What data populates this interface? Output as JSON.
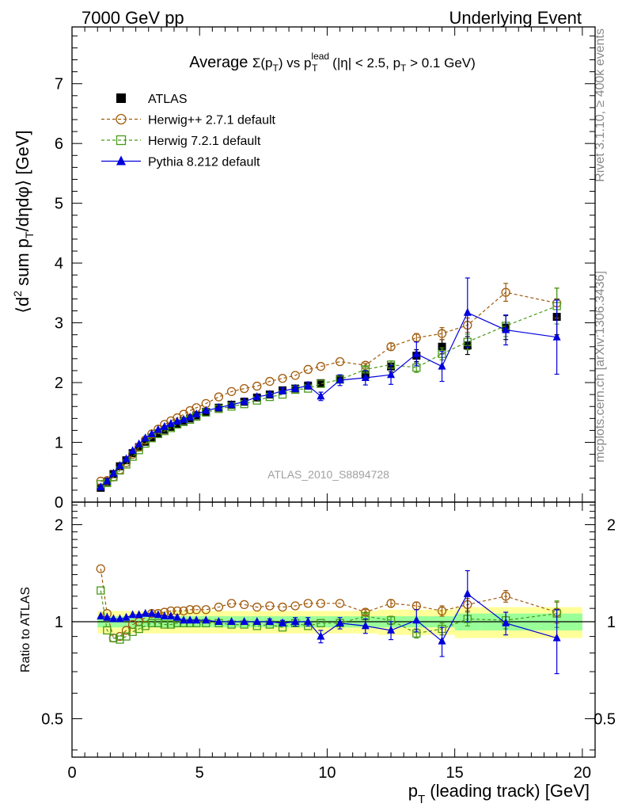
{
  "header": {
    "left": "7000 GeV pp",
    "right": "Underlying Event"
  },
  "side_labels": {
    "rivet": "Rivet 3.1.10, ≥ 400k events",
    "mcplots": "mcplots.cern.ch [arXiv:1306.3436]"
  },
  "plot_title": {
    "prefix": "Average ",
    "sigma": "Σ(p",
    "sigma_sub": "T",
    "sigma_close": ")",
    "vs": " vs p",
    "vs_sup": "lead",
    "vs_sub": "T",
    "cut_open": " (|η| < 2.5, p",
    "cut_sub": "T",
    "cut_close": " > 0.1 GeV)"
  },
  "watermark": "ATLAS_2010_S8894728",
  "legend": [
    {
      "label": "ATLAS",
      "color": "#000000",
      "marker": "filled-square"
    },
    {
      "label": "Herwig++ 2.7.1 default",
      "color": "#a05a0a",
      "marker": "open-circle"
    },
    {
      "label": "Herwig 7.2.1 default",
      "color": "#4a9a1a",
      "marker": "open-square"
    },
    {
      "label": "Pythia 8.212 default",
      "color": "#0000dd",
      "marker": "filled-triangle"
    }
  ],
  "main_ylabel": {
    "part1": "⟨d",
    "sup": "2",
    "part2": " sum p",
    "sub": "T",
    "part3": "/dηdφ⟩ [GeV]"
  },
  "ratio_ylabel": "Ratio to ATLAS",
  "xlabel": {
    "main": "p",
    "sub": "T",
    "rest": " (leading track) [GeV]"
  },
  "chart_data": {
    "type": "scatter",
    "xlim": [
      0,
      20.5
    ],
    "x_ticks": [
      "0",
      "5",
      "10",
      "15",
      "20"
    ],
    "main": {
      "ylim": [
        0,
        7.95
      ],
      "y_ticks": [
        "0",
        "1",
        "2",
        "3",
        "4",
        "5",
        "6",
        "7"
      ],
      "series": [
        {
          "name": "ATLAS",
          "color": "#000000",
          "marker": "filled-square",
          "line": "none",
          "x": [
            1.125,
            1.375,
            1.625,
            1.875,
            2.125,
            2.375,
            2.625,
            2.875,
            3.125,
            3.375,
            3.625,
            3.875,
            4.125,
            4.375,
            4.625,
            4.875,
            5.25,
            5.75,
            6.25,
            6.75,
            7.25,
            7.75,
            8.25,
            8.75,
            9.25,
            9.75,
            10.5,
            11.5,
            12.5,
            13.5,
            14.5,
            15.5,
            17,
            19
          ],
          "y": [
            0.24,
            0.34,
            0.47,
            0.6,
            0.7,
            0.82,
            0.92,
            1.01,
            1.08,
            1.15,
            1.21,
            1.26,
            1.31,
            1.36,
            1.4,
            1.45,
            1.51,
            1.58,
            1.63,
            1.68,
            1.75,
            1.8,
            1.87,
            1.9,
            1.95,
            1.99,
            2.06,
            2.13,
            2.27,
            2.45,
            2.6,
            2.62,
            2.92,
            3.1
          ],
          "err": [
            0.01,
            0.01,
            0.01,
            0.01,
            0.01,
            0.01,
            0.01,
            0.01,
            0.02,
            0.02,
            0.02,
            0.02,
            0.02,
            0.02,
            0.02,
            0.02,
            0.02,
            0.03,
            0.03,
            0.03,
            0.03,
            0.04,
            0.04,
            0.04,
            0.05,
            0.05,
            0.05,
            0.07,
            0.09,
            0.1,
            0.12,
            0.15,
            0.2,
            0.3
          ]
        },
        {
          "name": "Herwig++ 2.7.1 default",
          "color": "#a05a0a",
          "marker": "open-circle",
          "line": "dashed",
          "x": [
            1.125,
            1.375,
            1.625,
            1.875,
            2.125,
            2.375,
            2.625,
            2.875,
            3.125,
            3.375,
            3.625,
            3.875,
            4.125,
            4.375,
            4.625,
            4.875,
            5.25,
            5.75,
            6.25,
            6.75,
            7.25,
            7.75,
            8.25,
            8.75,
            9.25,
            9.75,
            10.5,
            11.5,
            12.5,
            13.5,
            14.5,
            15.5,
            17,
            19
          ],
          "y": [
            0.35,
            0.36,
            0.42,
            0.54,
            0.66,
            0.8,
            0.92,
            1.04,
            1.14,
            1.22,
            1.3,
            1.36,
            1.41,
            1.47,
            1.53,
            1.58,
            1.65,
            1.76,
            1.85,
            1.9,
            1.94,
            2.02,
            2.07,
            2.12,
            2.22,
            2.27,
            2.35,
            2.29,
            2.6,
            2.75,
            2.82,
            2.96,
            3.51,
            3.33
          ],
          "err": [
            0,
            0,
            0,
            0,
            0,
            0,
            0,
            0,
            0,
            0,
            0,
            0,
            0,
            0,
            0,
            0,
            0,
            0,
            0,
            0,
            0,
            0,
            0,
            0,
            0,
            0,
            0,
            0.03,
            0.06,
            0.07,
            0.1,
            0.12,
            0.15,
            0.25
          ]
        },
        {
          "name": "Herwig 7.2.1 default",
          "color": "#4a9a1a",
          "marker": "open-square",
          "line": "dashed",
          "x": [
            1.125,
            1.375,
            1.625,
            1.875,
            2.125,
            2.375,
            2.625,
            2.875,
            3.125,
            3.375,
            3.625,
            3.875,
            4.125,
            4.375,
            4.625,
            4.875,
            5.25,
            5.75,
            6.25,
            6.75,
            7.25,
            7.75,
            8.25,
            8.75,
            9.25,
            9.75,
            10.5,
            11.5,
            12.5,
            13.5,
            14.5,
            15.5,
            17,
            19
          ],
          "y": [
            0.3,
            0.32,
            0.42,
            0.53,
            0.63,
            0.76,
            0.87,
            0.98,
            1.07,
            1.14,
            1.19,
            1.24,
            1.3,
            1.34,
            1.38,
            1.43,
            1.5,
            1.56,
            1.6,
            1.64,
            1.7,
            1.76,
            1.8,
            1.88,
            1.9,
            1.98,
            2.05,
            2.22,
            2.3,
            2.25,
            2.48,
            2.68,
            2.95,
            3.28
          ],
          "err": [
            0,
            0,
            0,
            0,
            0,
            0,
            0,
            0,
            0,
            0,
            0,
            0,
            0,
            0,
            0,
            0,
            0,
            0,
            0,
            0,
            0,
            0,
            0,
            0,
            0,
            0,
            0,
            0.04,
            0.06,
            0.08,
            0.1,
            0.13,
            0.18,
            0.3
          ]
        },
        {
          "name": "Pythia 8.212 default",
          "color": "#0000dd",
          "marker": "filled-triangle",
          "line": "solid",
          "x": [
            1.125,
            1.375,
            1.625,
            1.875,
            2.125,
            2.375,
            2.625,
            2.875,
            3.125,
            3.375,
            3.625,
            3.875,
            4.125,
            4.375,
            4.625,
            4.875,
            5.25,
            5.75,
            6.25,
            6.75,
            7.25,
            7.75,
            8.25,
            8.75,
            9.25,
            9.75,
            10.5,
            11.5,
            12.5,
            13.5,
            14.5,
            15.5,
            17,
            19
          ],
          "y": [
            0.25,
            0.35,
            0.48,
            0.61,
            0.72,
            0.86,
            0.97,
            1.07,
            1.14,
            1.21,
            1.26,
            1.31,
            1.35,
            1.38,
            1.42,
            1.47,
            1.53,
            1.58,
            1.63,
            1.68,
            1.76,
            1.8,
            1.86,
            1.9,
            1.95,
            1.77,
            2.04,
            2.08,
            2.13,
            2.48,
            2.27,
            3.17,
            2.88,
            2.76
          ],
          "err": [
            0,
            0,
            0,
            0,
            0,
            0,
            0,
            0,
            0,
            0,
            0,
            0,
            0,
            0,
            0,
            0,
            0,
            0,
            0,
            0,
            0,
            0.04,
            0.05,
            0.05,
            0.06,
            0.07,
            0.09,
            0.12,
            0.16,
            0.2,
            0.25,
            0.58,
            0.25,
            0.62
          ]
        }
      ]
    },
    "ratio": {
      "ylim": [
        0.38,
        2.35
      ],
      "log_scale": true,
      "y_ticks": [
        "0.5",
        "1",
        "2"
      ],
      "y_tick_values": [
        0.5,
        1,
        2
      ],
      "band_x_edges": [
        1,
        1.25,
        1.5,
        1.75,
        2,
        2.25,
        2.5,
        2.75,
        3,
        3.25,
        3.5,
        3.75,
        4,
        4.25,
        4.5,
        4.75,
        5,
        5.5,
        6,
        6.5,
        7,
        7.5,
        8,
        8.5,
        9,
        9.5,
        10,
        11,
        12,
        13,
        14,
        15,
        16,
        20
      ],
      "band_stat": [
        0.04,
        0.04,
        0.04,
        0.04,
        0.04,
        0.04,
        0.04,
        0.04,
        0.04,
        0.04,
        0.04,
        0.04,
        0.04,
        0.04,
        0.04,
        0.04,
        0.04,
        0.04,
        0.04,
        0.04,
        0.04,
        0.04,
        0.04,
        0.04,
        0.04,
        0.04,
        0.04,
        0.04,
        0.04,
        0.04,
        0.04,
        0.06,
        0.06
      ],
      "band_total": [
        0.08,
        0.08,
        0.08,
        0.08,
        0.08,
        0.08,
        0.08,
        0.08,
        0.08,
        0.08,
        0.08,
        0.08,
        0.08,
        0.08,
        0.08,
        0.08,
        0.08,
        0.08,
        0.08,
        0.08,
        0.08,
        0.08,
        0.08,
        0.08,
        0.08,
        0.08,
        0.08,
        0.08,
        0.09,
        0.09,
        0.09,
        0.11,
        0.11
      ],
      "series": [
        {
          "name": "Herwig++ 2.7.1 default",
          "color": "#a05a0a",
          "marker": "open-circle",
          "line": "dashed",
          "x": [
            1.125,
            1.375,
            1.625,
            1.875,
            2.125,
            2.375,
            2.625,
            2.875,
            3.125,
            3.375,
            3.625,
            3.875,
            4.125,
            4.375,
            4.625,
            4.875,
            5.25,
            5.75,
            6.25,
            6.75,
            7.25,
            7.75,
            8.25,
            8.75,
            9.25,
            9.75,
            10.5,
            11.5,
            12.5,
            13.5,
            14.5,
            15.5,
            17,
            19
          ],
          "y": [
            1.46,
            1.06,
            0.89,
            0.9,
            0.94,
            0.98,
            1.0,
            1.03,
            1.06,
            1.06,
            1.07,
            1.08,
            1.08,
            1.08,
            1.09,
            1.09,
            1.09,
            1.11,
            1.14,
            1.13,
            1.11,
            1.12,
            1.11,
            1.12,
            1.14,
            1.14,
            1.14,
            1.07,
            1.14,
            1.12,
            1.08,
            1.13,
            1.2,
            1.07
          ],
          "err": [
            0,
            0,
            0,
            0,
            0,
            0,
            0,
            0,
            0,
            0,
            0,
            0,
            0,
            0,
            0,
            0,
            0,
            0,
            0,
            0,
            0,
            0,
            0,
            0,
            0,
            0,
            0,
            0.02,
            0.03,
            0.03,
            0.04,
            0.05,
            0.05,
            0.08
          ]
        },
        {
          "name": "Herwig 7.2.1 default",
          "color": "#4a9a1a",
          "marker": "open-square",
          "line": "dashed",
          "x": [
            1.125,
            1.375,
            1.625,
            1.875,
            2.125,
            2.375,
            2.625,
            2.875,
            3.125,
            3.375,
            3.625,
            3.875,
            4.125,
            4.375,
            4.625,
            4.875,
            5.25,
            5.75,
            6.25,
            6.75,
            7.25,
            7.75,
            8.25,
            8.75,
            9.25,
            9.75,
            10.5,
            11.5,
            12.5,
            13.5,
            14.5,
            15.5,
            17,
            19
          ],
          "y": [
            1.25,
            0.94,
            0.89,
            0.88,
            0.9,
            0.93,
            0.95,
            0.97,
            0.99,
            0.99,
            0.98,
            0.98,
            0.99,
            0.99,
            0.99,
            0.99,
            0.99,
            0.99,
            0.98,
            0.98,
            0.97,
            0.98,
            0.96,
            0.99,
            0.97,
            0.99,
            0.99,
            1.04,
            1.01,
            0.92,
            0.95,
            1.02,
            1.01,
            1.06
          ],
          "err": [
            0,
            0,
            0,
            0,
            0,
            0,
            0,
            0,
            0,
            0,
            0,
            0,
            0,
            0,
            0,
            0,
            0,
            0,
            0,
            0,
            0,
            0,
            0,
            0,
            0,
            0,
            0,
            0.02,
            0.03,
            0.03,
            0.04,
            0.05,
            0.06,
            0.1
          ]
        },
        {
          "name": "Pythia 8.212 default",
          "color": "#0000dd",
          "marker": "filled-triangle",
          "line": "solid",
          "x": [
            1.125,
            1.375,
            1.625,
            1.875,
            2.125,
            2.375,
            2.625,
            2.875,
            3.125,
            3.375,
            3.625,
            3.875,
            4.125,
            4.375,
            4.625,
            4.875,
            5.25,
            5.75,
            6.25,
            6.75,
            7.25,
            7.75,
            8.25,
            8.75,
            9.25,
            9.75,
            10.5,
            11.5,
            12.5,
            13.5,
            14.5,
            15.5,
            17,
            19
          ],
          "y": [
            1.04,
            1.03,
            1.02,
            1.02,
            1.03,
            1.05,
            1.05,
            1.06,
            1.06,
            1.05,
            1.04,
            1.04,
            1.03,
            1.01,
            1.01,
            1.01,
            1.01,
            1.0,
            1.0,
            1.0,
            1.0,
            1.0,
            0.99,
            1.0,
            1.0,
            0.9,
            0.99,
            0.97,
            0.94,
            1.01,
            0.87,
            1.22,
            0.99,
            0.89
          ],
          "err": [
            0,
            0,
            0,
            0,
            0,
            0,
            0,
            0,
            0,
            0,
            0,
            0,
            0,
            0,
            0,
            0,
            0,
            0,
            0,
            0,
            0,
            0.02,
            0.02,
            0.03,
            0.03,
            0.04,
            0.04,
            0.05,
            0.06,
            0.08,
            0.09,
            0.22,
            0.08,
            0.2
          ]
        }
      ]
    }
  }
}
